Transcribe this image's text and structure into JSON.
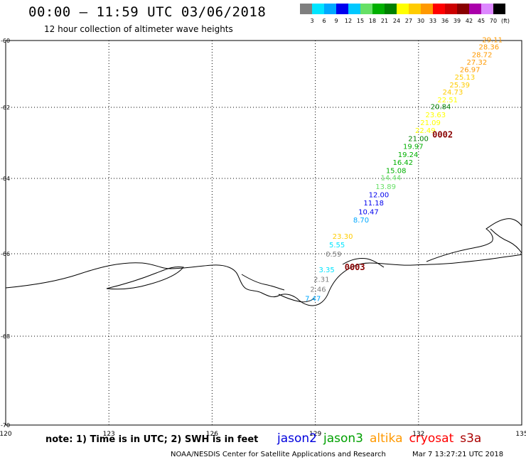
{
  "header": {
    "title": "00:00 – 11:59 UTC 03/06/2018",
    "subtitle": "12 hour collection of altimeter wave heights"
  },
  "legend": {
    "colors": [
      "#7f7f7f",
      "#00e5ff",
      "#00a8ff",
      "#0000ee",
      "#00c8ff",
      "#66e066",
      "#00b000",
      "#008000",
      "#ffff00",
      "#ffcc00",
      "#ff9900",
      "#ff0000",
      "#cc0000",
      "#880000",
      "#aa00aa",
      "#dd88ff",
      "#000000"
    ],
    "labels": [
      "3",
      "6",
      "9",
      "12",
      "15",
      "18",
      "21",
      "24",
      "27",
      "30",
      "33",
      "36",
      "39",
      "42",
      "45",
      "70",
      "(ft)"
    ]
  },
  "map": {
    "lon_ticks": [
      "120",
      "123",
      "126",
      "129",
      "132",
      "135"
    ],
    "lat_ticks": [
      "-60",
      "-62",
      "-64",
      "-66",
      "-68",
      "-70"
    ],
    "track_pass_ids": [
      "0002",
      "0003"
    ],
    "wave_labels": [
      {
        "text": "29.11",
        "lon": 133.85,
        "lat": -60.05,
        "color": "#ff9900"
      },
      {
        "text": "28.36",
        "lon": 133.75,
        "lat": -60.27,
        "color": "#ff9900"
      },
      {
        "text": "28.72",
        "lon": 133.55,
        "lat": -60.5,
        "color": "#ff9900"
      },
      {
        "text": "27.32",
        "lon": 133.4,
        "lat": -60.72,
        "color": "#ff9900"
      },
      {
        "text": "26.97",
        "lon": 133.2,
        "lat": -60.95,
        "color": "#ff9900"
      },
      {
        "text": "25.13",
        "lon": 133.05,
        "lat": -61.17,
        "color": "#ffcc00"
      },
      {
        "text": "25.39",
        "lon": 132.9,
        "lat": -61.4,
        "color": "#ffcc00"
      },
      {
        "text": "24.73",
        "lon": 132.7,
        "lat": -61.62,
        "color": "#ffcc00"
      },
      {
        "text": "22.51",
        "lon": 132.55,
        "lat": -61.85,
        "color": "#ffff00"
      },
      {
        "text": "20.84",
        "lon": 132.35,
        "lat": -62.05,
        "color": "#008000"
      },
      {
        "text": "23.63",
        "lon": 132.2,
        "lat": -62.28,
        "color": "#ffff00"
      },
      {
        "text": "21.09",
        "lon": 132.05,
        "lat": -62.5,
        "color": "#ffff00"
      },
      {
        "text": "22.49",
        "lon": 131.9,
        "lat": -62.72,
        "color": "#ffff00"
      },
      {
        "text": "21.00",
        "lon": 131.7,
        "lat": -62.95,
        "color": "#008000"
      },
      {
        "text": "19.97",
        "lon": 131.55,
        "lat": -63.17,
        "color": "#00b000"
      },
      {
        "text": "19.24",
        "lon": 131.4,
        "lat": -63.4,
        "color": "#00b000"
      },
      {
        "text": "16.42",
        "lon": 131.25,
        "lat": -63.62,
        "color": "#00b000"
      },
      {
        "text": "15.08",
        "lon": 131.05,
        "lat": -63.85,
        "color": "#00b000"
      },
      {
        "text": "14.44",
        "lon": 130.9,
        "lat": -64.05,
        "color": "#66e066"
      },
      {
        "text": "13.89",
        "lon": 130.75,
        "lat": -64.28,
        "color": "#66e066"
      },
      {
        "text": "12.00",
        "lon": 130.55,
        "lat": -64.5,
        "color": "#0000ee"
      },
      {
        "text": "11.18",
        "lon": 130.4,
        "lat": -64.72,
        "color": "#0000ee"
      },
      {
        "text": "10.47",
        "lon": 130.25,
        "lat": -64.95,
        "color": "#0000ee"
      },
      {
        "text": "8.70",
        "lon": 130.1,
        "lat": -65.17,
        "color": "#00a8ff"
      },
      {
        "text": "23.30",
        "lon": 129.5,
        "lat": -65.6,
        "color": "#ffcc00"
      },
      {
        "text": "5.55",
        "lon": 129.4,
        "lat": -65.83,
        "color": "#00e5ff"
      },
      {
        "text": "0.59",
        "lon": 129.3,
        "lat": -66.07,
        "color": "#7f7f7f"
      },
      {
        "text": "3.35",
        "lon": 129.1,
        "lat": -66.45,
        "color": "#00e5ff"
      },
      {
        "text": "2.31",
        "lon": 128.95,
        "lat": -66.68,
        "color": "#7f7f7f"
      },
      {
        "text": "2.46",
        "lon": 128.85,
        "lat": -66.92,
        "color": "#7f7f7f"
      },
      {
        "text": "7.47",
        "lon": 128.7,
        "lat": -67.15,
        "color": "#00a8ff"
      }
    ],
    "pass_labels": [
      {
        "text": "0002",
        "lon": 132.4,
        "lat": -62.85,
        "color": "#880000"
      },
      {
        "text": "0003",
        "lon": 129.85,
        "lat": -66.4,
        "color": "#880000"
      }
    ]
  },
  "footer": {
    "note": "note: 1) Time is in UTC; 2) SWH is in feet",
    "satellites": [
      {
        "name": "jason2",
        "color": "#0000dd"
      },
      {
        "name": "jason3",
        "color": "#00a000"
      },
      {
        "name": "altika",
        "color": "#ff9900"
      },
      {
        "name": "cryosat",
        "color": "#ff0000"
      },
      {
        "name": "s3a",
        "color": "#aa0000"
      }
    ],
    "credit": "NOAA/NESDIS Center for Satellite Applications and Research",
    "timestamp": "Mar  7 13:27:21 UTC 2018"
  }
}
